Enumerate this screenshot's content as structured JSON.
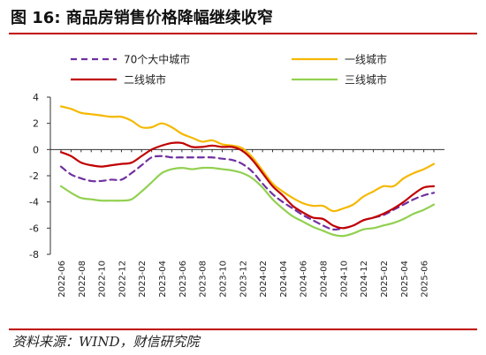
{
  "figure": {
    "title": "图 16:  商品房销售价格降幅继续收窄",
    "source": "资料来源：WIND，财信研究院"
  },
  "chart_data": {
    "type": "line",
    "title": "",
    "xlabel": "",
    "ylabel": "",
    "ylim": [
      -8,
      4
    ],
    "yticks": [
      4,
      2,
      0,
      -2,
      -4,
      -6,
      -8
    ],
    "legend_position": "top",
    "grid": false,
    "x": [
      "2022-06",
      "2022-07",
      "2022-08",
      "2022-09",
      "2022-10",
      "2022-11",
      "2022-12",
      "2023-01",
      "2023-02",
      "2023-03",
      "2023-04",
      "2023-05",
      "2023-06",
      "2023-07",
      "2023-08",
      "2023-09",
      "2023-10",
      "2023-11",
      "2023-12",
      "2024-01",
      "2024-02",
      "2024-03",
      "2024-04",
      "2024-05",
      "2024-06",
      "2024-07",
      "2024-08",
      "2024-09",
      "2024-10",
      "2024-11",
      "2024-12",
      "2025-01",
      "2025-02",
      "2025-03",
      "2025-04",
      "2025-05",
      "2025-06",
      "2025-07"
    ],
    "xtick_labels": [
      "2022-06",
      "2022-08",
      "2022-10",
      "2022-12",
      "2023-02",
      "2023-04",
      "2023-06",
      "2023-08",
      "2023-10",
      "2023-12",
      "2024-02",
      "2024-04",
      "2024-06",
      "2024-08",
      "2024-10",
      "2024-12",
      "2025-02",
      "2025-04",
      "2025-06"
    ],
    "series": [
      {
        "name": "70个大中城市",
        "color": "#7030a0",
        "dash": true,
        "values": [
          -1.3,
          -1.9,
          -2.2,
          -2.4,
          -2.4,
          -2.3,
          -2.3,
          -1.8,
          -1.2,
          -0.6,
          -0.5,
          -0.6,
          -0.6,
          -0.6,
          -0.6,
          -0.6,
          -0.7,
          -0.8,
          -1.1,
          -1.7,
          -2.6,
          -3.4,
          -4.0,
          -4.5,
          -5.0,
          -5.4,
          -5.8,
          -6.1,
          -6.0,
          -5.8,
          -5.4,
          -5.2,
          -5.0,
          -4.6,
          -4.2,
          -3.8,
          -3.5,
          -3.3
        ]
      },
      {
        "name": "一线城市",
        "color": "#f5b800",
        "dash": false,
        "values": [
          3.3,
          3.1,
          2.8,
          2.7,
          2.6,
          2.5,
          2.5,
          2.2,
          1.7,
          1.7,
          2.0,
          1.7,
          1.2,
          0.9,
          0.6,
          0.7,
          0.4,
          0.3,
          0.1,
          -0.6,
          -1.6,
          -2.6,
          -3.2,
          -3.7,
          -4.1,
          -4.3,
          -4.3,
          -4.7,
          -4.5,
          -4.2,
          -3.6,
          -3.2,
          -2.8,
          -2.8,
          -2.2,
          -1.8,
          -1.5,
          -1.1
        ]
      },
      {
        "name": "二线城市",
        "color": "#c00000",
        "dash": false,
        "values": [
          -0.2,
          -0.5,
          -1.0,
          -1.2,
          -1.3,
          -1.2,
          -1.1,
          -1.0,
          -0.5,
          0.0,
          0.3,
          0.5,
          0.5,
          0.2,
          0.2,
          0.3,
          0.2,
          0.2,
          -0.1,
          -0.8,
          -1.8,
          -2.8,
          -3.5,
          -4.3,
          -4.8,
          -5.2,
          -5.3,
          -5.8,
          -6.0,
          -5.8,
          -5.4,
          -5.2,
          -4.9,
          -4.5,
          -4.0,
          -3.4,
          -2.9,
          -2.8
        ]
      },
      {
        "name": "三线城市",
        "color": "#92d050",
        "dash": false,
        "values": [
          -2.8,
          -3.3,
          -3.7,
          -3.8,
          -3.9,
          -3.9,
          -3.9,
          -3.8,
          -3.2,
          -2.5,
          -1.8,
          -1.5,
          -1.4,
          -1.5,
          -1.4,
          -1.4,
          -1.5,
          -1.6,
          -1.8,
          -2.2,
          -2.9,
          -3.8,
          -4.5,
          -5.1,
          -5.5,
          -5.9,
          -6.2,
          -6.5,
          -6.6,
          -6.4,
          -6.1,
          -6.0,
          -5.8,
          -5.6,
          -5.3,
          -4.9,
          -4.6,
          -4.2
        ]
      }
    ]
  }
}
